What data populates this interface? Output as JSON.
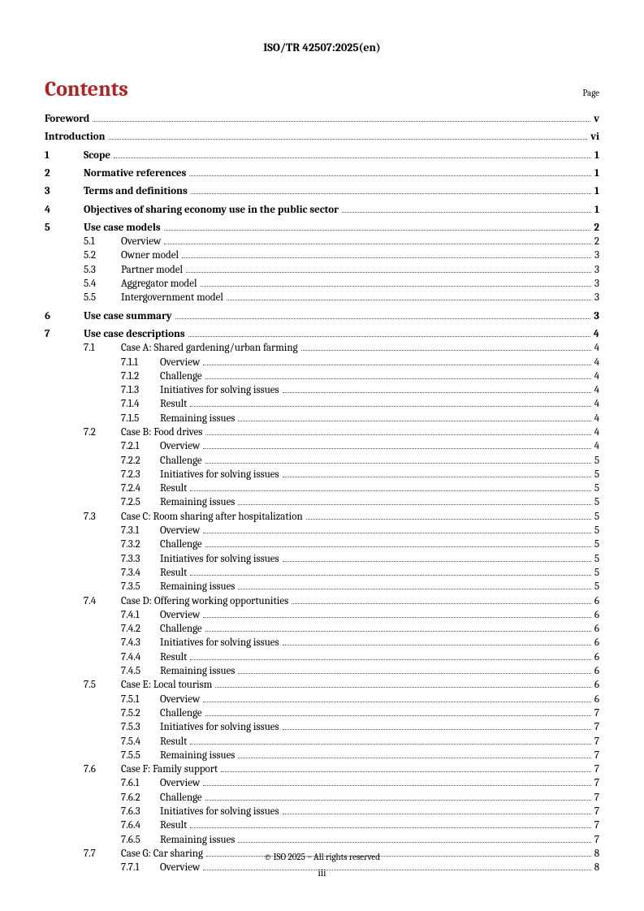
{
  "header": {
    "doc_id": "ISO/TR 42507:2025(en)"
  },
  "contents": {
    "title": "Contents",
    "page_label": "Page"
  },
  "toc": [
    {
      "level": 0,
      "bold": true,
      "first": true,
      "num": "",
      "title": "Foreword",
      "page": "v"
    },
    {
      "level": 0,
      "bold": true,
      "num": "",
      "title": "Introduction",
      "page": "vi"
    },
    {
      "level": 0,
      "bold": true,
      "num": "1",
      "title": "Scope",
      "page": "1"
    },
    {
      "level": 0,
      "bold": true,
      "num": "2",
      "title": "Normative references",
      "page": "1"
    },
    {
      "level": 0,
      "bold": true,
      "num": "3",
      "title": "Terms and definitions",
      "page": "1"
    },
    {
      "level": 0,
      "bold": true,
      "num": "4",
      "title": "Objectives of sharing economy use in the public sector",
      "page": "1"
    },
    {
      "level": 0,
      "bold": true,
      "num": "5",
      "title": "Use case models",
      "page": "2"
    },
    {
      "level": 1,
      "num": "5.1",
      "title": "Overview",
      "page": "2"
    },
    {
      "level": 1,
      "num": "5.2",
      "title": "Owner model",
      "page": "3"
    },
    {
      "level": 1,
      "num": "5.3",
      "title": "Partner model",
      "page": "3"
    },
    {
      "level": 1,
      "num": "5.4",
      "title": "Aggregator model",
      "page": "3"
    },
    {
      "level": 1,
      "num": "5.5",
      "title": "Intergovernment model",
      "page": "3"
    },
    {
      "level": 0,
      "bold": true,
      "num": "6",
      "title": "Use case summary",
      "page": "3"
    },
    {
      "level": 0,
      "bold": true,
      "num": "7",
      "title": "Use case descriptions",
      "page": "4"
    },
    {
      "level": 1,
      "num": "7.1",
      "title": "Case A: Shared gardening/urban farming",
      "page": "4"
    },
    {
      "level": 2,
      "num": "7.1.1",
      "title": "Overview",
      "page": "4"
    },
    {
      "level": 2,
      "num": "7.1.2",
      "title": "Challenge",
      "page": "4"
    },
    {
      "level": 2,
      "num": "7.1.3",
      "title": "Initiatives for solving issues",
      "page": "4"
    },
    {
      "level": 2,
      "num": "7.1.4",
      "title": "Result",
      "page": "4"
    },
    {
      "level": 2,
      "num": "7.1.5",
      "title": "Remaining issues",
      "page": "4"
    },
    {
      "level": 1,
      "num": "7.2",
      "title": "Case B: Food drives",
      "page": "4"
    },
    {
      "level": 2,
      "num": "7.2.1",
      "title": "Overview",
      "page": "4"
    },
    {
      "level": 2,
      "num": "7.2.2",
      "title": "Challenge",
      "page": "5"
    },
    {
      "level": 2,
      "num": "7.2.3",
      "title": "Initiatives for solving issues",
      "page": "5"
    },
    {
      "level": 2,
      "num": "7.2.4",
      "title": "Result",
      "page": "5"
    },
    {
      "level": 2,
      "num": "7.2.5",
      "title": "Remaining issues",
      "page": "5"
    },
    {
      "level": 1,
      "num": "7.3",
      "title": "Case C: Room sharing after hospitalization",
      "page": "5"
    },
    {
      "level": 2,
      "num": "7.3.1",
      "title": "Overview",
      "page": "5"
    },
    {
      "level": 2,
      "num": "7.3.2",
      "title": "Challenge",
      "page": "5"
    },
    {
      "level": 2,
      "num": "7.3.3",
      "title": "Initiatives for solving issues",
      "page": "5"
    },
    {
      "level": 2,
      "num": "7.3.4",
      "title": "Result",
      "page": "5"
    },
    {
      "level": 2,
      "num": "7.3.5",
      "title": "Remaining issues",
      "page": "5"
    },
    {
      "level": 1,
      "num": "7.4",
      "title": "Case D: Offering working opportunities",
      "page": "6"
    },
    {
      "level": 2,
      "num": "7.4.1",
      "title": "Overview",
      "page": "6"
    },
    {
      "level": 2,
      "num": "7.4.2",
      "title": "Challenge",
      "page": "6"
    },
    {
      "level": 2,
      "num": "7.4.3",
      "title": "Initiatives for solving issues",
      "page": "6"
    },
    {
      "level": 2,
      "num": "7.4.4",
      "title": "Result",
      "page": "6"
    },
    {
      "level": 2,
      "num": "7.4.5",
      "title": "Remaining issues",
      "page": "6"
    },
    {
      "level": 1,
      "num": "7.5",
      "title": "Case E: Local tourism",
      "page": "6"
    },
    {
      "level": 2,
      "num": "7.5.1",
      "title": "Overview",
      "page": "6"
    },
    {
      "level": 2,
      "num": "7.5.2",
      "title": "Challenge",
      "page": "7"
    },
    {
      "level": 2,
      "num": "7.5.3",
      "title": "Initiatives for solving issues",
      "page": "7"
    },
    {
      "level": 2,
      "num": "7.5.4",
      "title": "Result",
      "page": "7"
    },
    {
      "level": 2,
      "num": "7.5.5",
      "title": "Remaining issues",
      "page": "7"
    },
    {
      "level": 1,
      "num": "7.6",
      "title": "Case F: Family support",
      "page": "7"
    },
    {
      "level": 2,
      "num": "7.6.1",
      "title": "Overview",
      "page": "7"
    },
    {
      "level": 2,
      "num": "7.6.2",
      "title": "Challenge",
      "page": "7"
    },
    {
      "level": 2,
      "num": "7.6.3",
      "title": "Initiatives for solving issues",
      "page": "7"
    },
    {
      "level": 2,
      "num": "7.6.4",
      "title": "Result",
      "page": "7"
    },
    {
      "level": 2,
      "num": "7.6.5",
      "title": "Remaining issues",
      "page": "7"
    },
    {
      "level": 1,
      "num": "7.7",
      "title": "Case G: Car sharing",
      "page": "8"
    },
    {
      "level": 2,
      "num": "7.7.1",
      "title": "Overview",
      "page": "8"
    }
  ],
  "footer": {
    "copyright": "© ISO 2025 – All rights reserved",
    "page_number": "iii"
  }
}
